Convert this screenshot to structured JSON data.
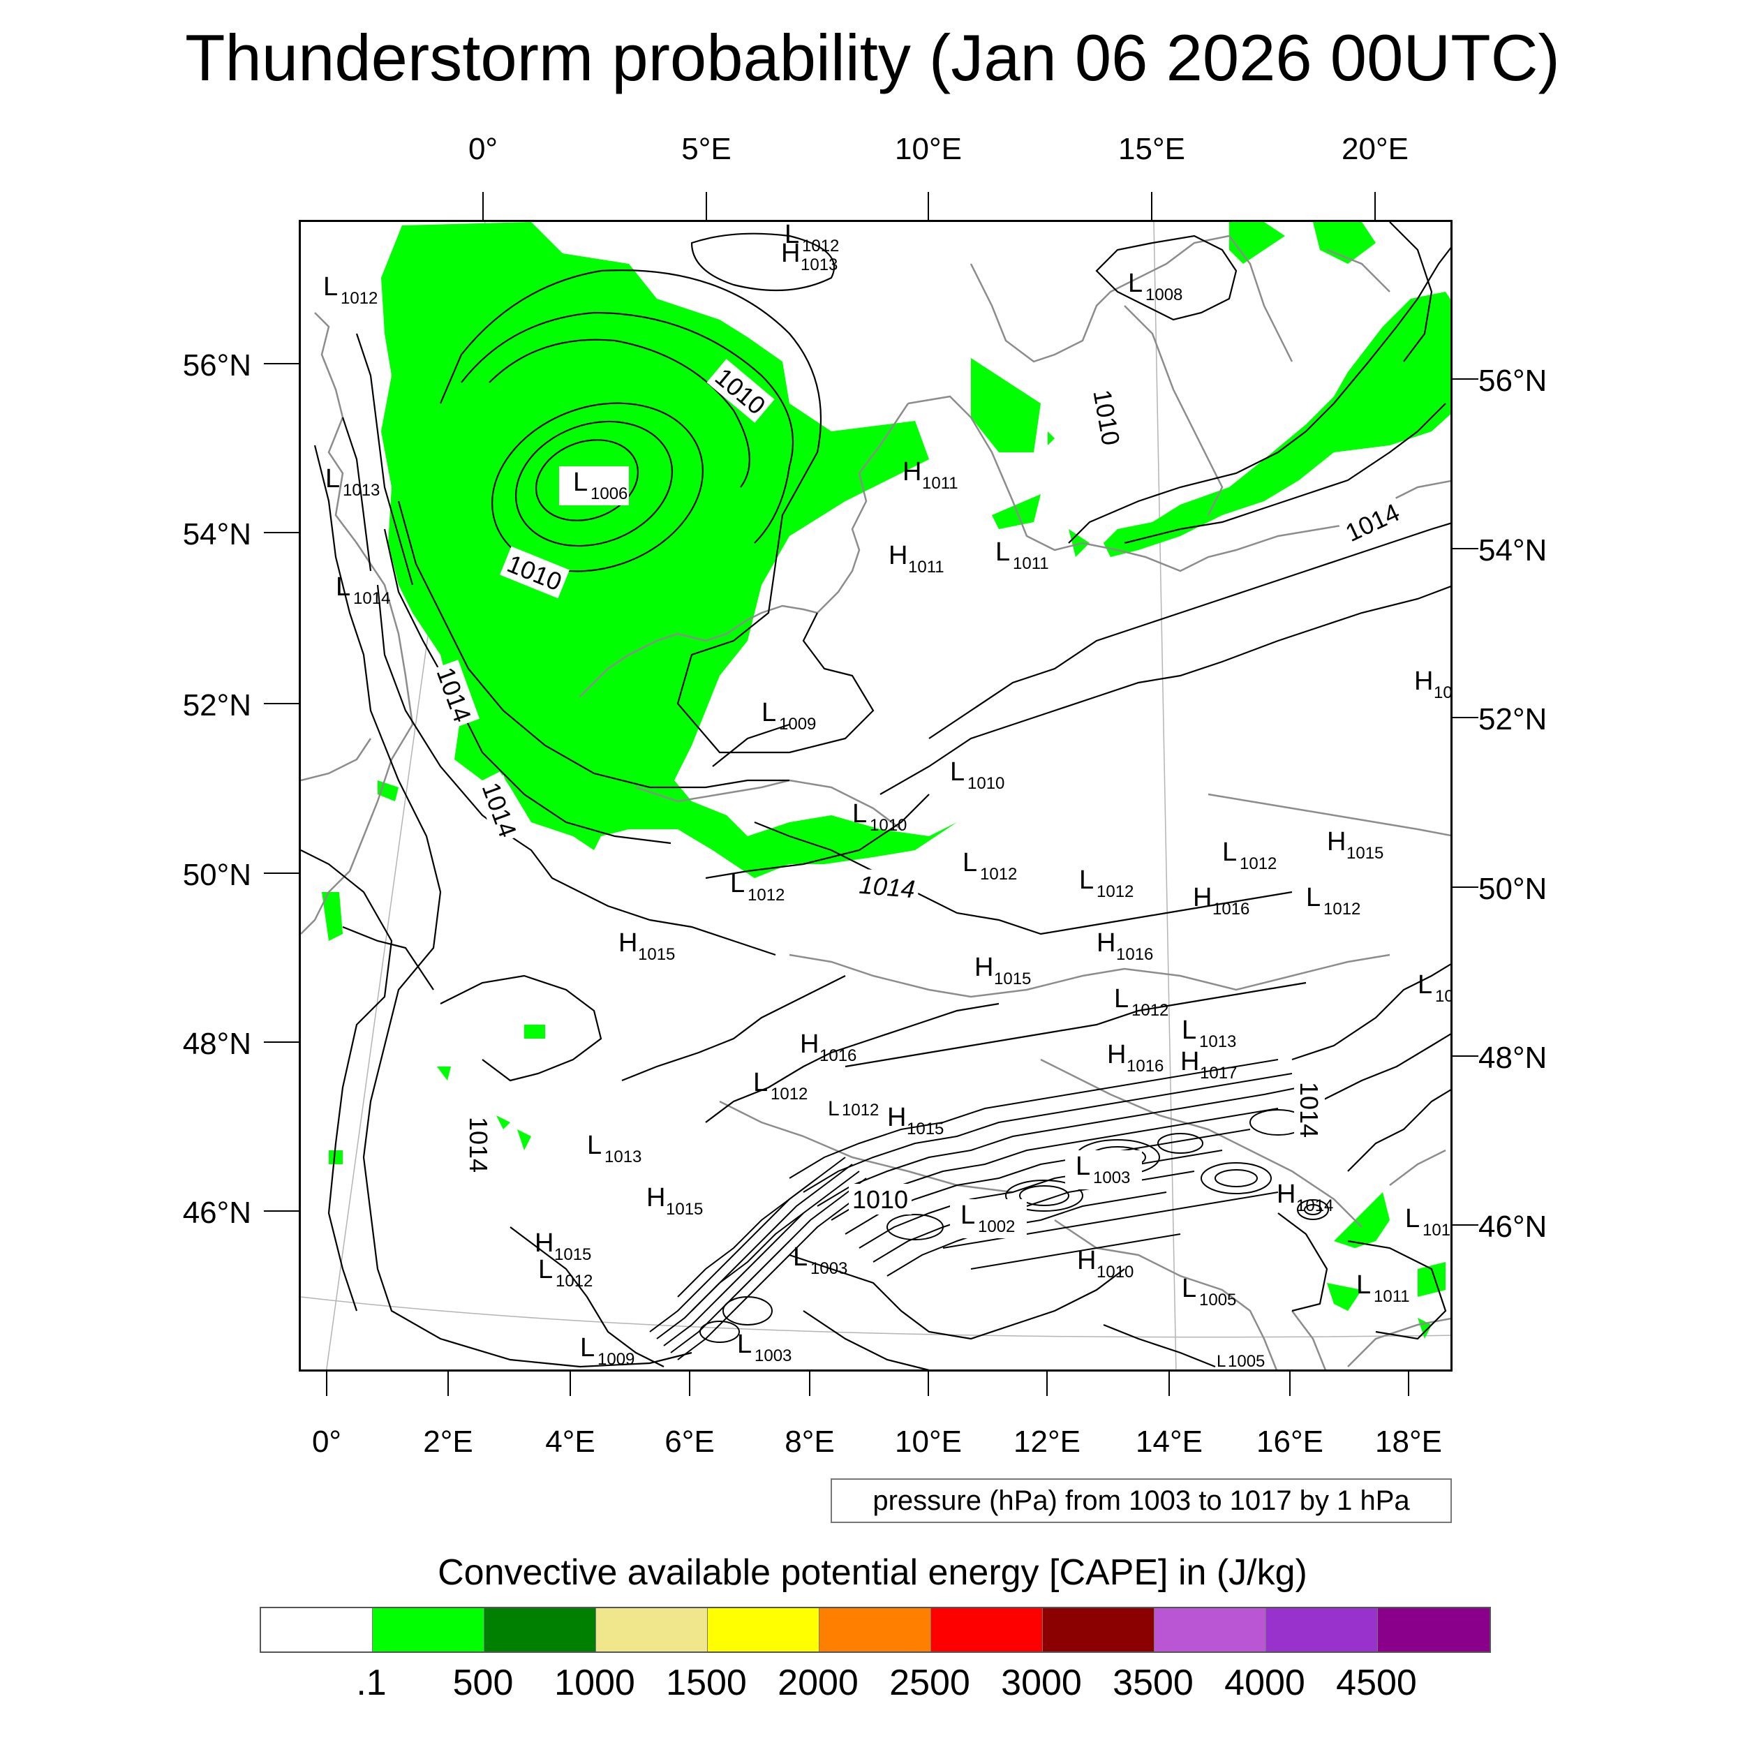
{
  "title": "Thunderstorm probability (Jan 06 2026 00UTC)",
  "top_lon_labels": [
    "0°",
    "5°E",
    "10°E",
    "15°E",
    "20°E"
  ],
  "bottom_lon_labels": [
    "0°",
    "2°E",
    "4°E",
    "6°E",
    "8°E",
    "10°E",
    "12°E",
    "14°E",
    "16°E",
    "18°E"
  ],
  "left_lat_labels": [
    "56°N",
    "54°N",
    "52°N",
    "50°N",
    "48°N",
    "46°N"
  ],
  "right_lat_labels": [
    "56°N",
    "54°N",
    "52°N",
    "50°N",
    "48°N",
    "46°N"
  ],
  "pressure_info": "pressure (hPa) from 1003 to 1017 by 1 hPa",
  "colorbar": {
    "title": "Convective available potential energy [CAPE] in (J/kg)",
    "levels": [
      ".1",
      "500",
      "1000",
      "1500",
      "2000",
      "2500",
      "3000",
      "3500",
      "4000",
      "4500"
    ],
    "colors": [
      "#ffffff",
      "#00ff00",
      "#008000",
      "#f0e68c",
      "#ffff00",
      "#ff8000",
      "#ff0000",
      "#8b0000",
      "#ba55d3",
      "#9932cc",
      "#8b008b"
    ]
  },
  "map": {
    "cape_color": "#00ff00",
    "coast_color": "#8c8c8c",
    "contour_color": "#000000",
    "contour_labels": [
      "1010",
      "1010",
      "1014",
      "1014",
      "1010",
      "1014",
      "1014",
      "1010",
      "1014",
      "1014"
    ],
    "pressure_centers": [
      {
        "type": "L",
        "value": "1012"
      },
      {
        "type": "H",
        "value": "1013"
      },
      {
        "type": "L",
        "value": "1012"
      },
      {
        "type": "L",
        "value": "1008"
      },
      {
        "type": "L",
        "value": "1013"
      },
      {
        "type": "L",
        "value": "1006"
      },
      {
        "type": "H",
        "value": "1011"
      },
      {
        "type": "L",
        "value": "1014"
      },
      {
        "type": "H",
        "value": "1011"
      },
      {
        "type": "L",
        "value": "1011"
      },
      {
        "type": "H",
        "value": "10"
      },
      {
        "type": "L",
        "value": "1009"
      },
      {
        "type": "L",
        "value": "1010"
      },
      {
        "type": "L",
        "value": "1010"
      },
      {
        "type": "H",
        "value": "1015"
      },
      {
        "type": "L",
        "value": "1012"
      },
      {
        "type": "L",
        "value": "1012"
      },
      {
        "type": "L",
        "value": "1012"
      },
      {
        "type": "L",
        "value": "1012"
      },
      {
        "type": "H",
        "value": "1016"
      },
      {
        "type": "L",
        "value": "1012"
      },
      {
        "type": "H",
        "value": "1015"
      },
      {
        "type": "H",
        "value": "1016"
      },
      {
        "type": "H",
        "value": "1015"
      },
      {
        "type": "L",
        "value": "10"
      },
      {
        "type": "L",
        "value": "1012"
      },
      {
        "type": "L",
        "value": "1013"
      },
      {
        "type": "H",
        "value": "1016"
      },
      {
        "type": "H",
        "value": "1016"
      },
      {
        "type": "H",
        "value": "1017"
      },
      {
        "type": "L",
        "value": "1012"
      },
      {
        "type": "L",
        "value": "1012"
      },
      {
        "type": "H",
        "value": "1015"
      },
      {
        "type": "L",
        "value": "1013"
      },
      {
        "type": "L",
        "value": "1003"
      },
      {
        "type": "H",
        "value": "1015"
      },
      {
        "type": "H",
        "value": "1014"
      },
      {
        "type": "L",
        "value": "101"
      },
      {
        "type": "L",
        "value": "1002"
      },
      {
        "type": "H",
        "value": "1015"
      },
      {
        "type": "L",
        "value": "1012"
      },
      {
        "type": "L",
        "value": "1003"
      },
      {
        "type": "H",
        "value": "1010"
      },
      {
        "type": "L",
        "value": "1005"
      },
      {
        "type": "L",
        "value": "1011"
      },
      {
        "type": "L",
        "value": "1009"
      },
      {
        "type": "L",
        "value": "1003"
      },
      {
        "type": "L",
        "value": "1005"
      }
    ]
  }
}
